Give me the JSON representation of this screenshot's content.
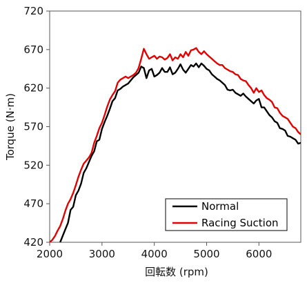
{
  "chart_data": {
    "type": "line",
    "title": "",
    "xlabel": "回転数 (rpm)",
    "ylabel": "Torque (N·m)",
    "xlim": [
      2000,
      6800
    ],
    "ylim": [
      420,
      720
    ],
    "x_ticks": [
      2000,
      3000,
      4000,
      5000,
      6000
    ],
    "x_tick_labels": [
      "2000",
      "3000",
      "4000",
      "5000",
      "6000"
    ],
    "y_ticks": [
      420,
      470,
      520,
      570,
      620,
      670,
      720
    ],
    "y_tick_labels": [
      "420",
      "470",
      "520",
      "570",
      "620",
      "670",
      "720"
    ],
    "grid": false,
    "legend_position": "bottom-right",
    "colors": {
      "normal": "#000000",
      "racing": "#e00000"
    },
    "series": [
      {
        "name": "Normal",
        "color": "#000000",
        "x": [
          2200,
          2300,
          2350,
          2400,
          2450,
          2500,
          2550,
          2600,
          2650,
          2700,
          2750,
          2800,
          2850,
          2900,
          2950,
          3000,
          3050,
          3100,
          3150,
          3200,
          3250,
          3300,
          3350,
          3400,
          3450,
          3500,
          3550,
          3600,
          3650,
          3700,
          3750,
          3800,
          3850,
          3900,
          3950,
          4000,
          4050,
          4100,
          4150,
          4200,
          4250,
          4300,
          4350,
          4400,
          4450,
          4500,
          4550,
          4600,
          4650,
          4700,
          4750,
          4800,
          4850,
          4900,
          4950,
          5000,
          5050,
          5100,
          5150,
          5200,
          5250,
          5300,
          5350,
          5400,
          5450,
          5500,
          5550,
          5600,
          5650,
          5700,
          5750,
          5800,
          5850,
          5900,
          5950,
          6000,
          6050,
          6100,
          6150,
          6200,
          6250,
          6300,
          6350,
          6400,
          6450,
          6500,
          6550,
          6600,
          6650,
          6700,
          6750,
          6800
        ],
        "values": [
          420,
          437,
          445,
          462,
          466,
          481,
          487,
          496,
          510,
          516,
          524,
          532,
          538,
          551,
          553,
          567,
          576,
          584,
          593,
          603,
          607,
          617,
          619,
          622,
          624,
          626,
          630,
          634,
          637,
          640,
          648,
          646,
          633,
          643,
          645,
          635,
          637,
          640,
          646,
          641,
          641,
          647,
          638,
          640,
          645,
          651,
          644,
          640,
          645,
          650,
          648,
          652,
          647,
          652,
          649,
          645,
          643,
          638,
          635,
          632,
          630,
          627,
          624,
          618,
          617,
          618,
          614,
          612,
          610,
          613,
          609,
          606,
          603,
          600,
          604,
          606,
          595,
          595,
          590,
          585,
          582,
          577,
          575,
          568,
          567,
          565,
          558,
          557,
          555,
          553,
          548,
          549
        ]
      },
      {
        "name": "Racing Suction",
        "color": "#e00000",
        "x": [
          2000,
          2050,
          2100,
          2150,
          2200,
          2250,
          2300,
          2350,
          2400,
          2450,
          2500,
          2550,
          2600,
          2650,
          2700,
          2750,
          2800,
          2850,
          2900,
          2950,
          3000,
          3050,
          3100,
          3150,
          3200,
          3250,
          3300,
          3350,
          3400,
          3450,
          3500,
          3550,
          3600,
          3650,
          3700,
          3750,
          3800,
          3850,
          3900,
          3950,
          4000,
          4050,
          4100,
          4150,
          4200,
          4250,
          4300,
          4350,
          4400,
          4450,
          4500,
          4550,
          4600,
          4650,
          4700,
          4750,
          4800,
          4850,
          4900,
          4950,
          5000,
          5050,
          5100,
          5150,
          5200,
          5250,
          5300,
          5350,
          5400,
          5450,
          5500,
          5550,
          5600,
          5650,
          5700,
          5750,
          5800,
          5850,
          5900,
          5950,
          6000,
          6050,
          6100,
          6150,
          6200,
          6250,
          6300,
          6350,
          6400,
          6450,
          6500,
          6550,
          6600,
          6650,
          6700,
          6750,
          6800
        ],
        "values": [
          420,
          423,
          428,
          435,
          441,
          450,
          461,
          470,
          476,
          484,
          494,
          505,
          514,
          522,
          526,
          530,
          536,
          549,
          558,
          568,
          575,
          585,
          596,
          605,
          611,
          616,
          627,
          631,
          633,
          635,
          633,
          635,
          637,
          640,
          646,
          658,
          671,
          664,
          658,
          660,
          662,
          658,
          661,
          660,
          657,
          659,
          664,
          656,
          660,
          658,
          664,
          660,
          667,
          662,
          669,
          670,
          672,
          667,
          664,
          668,
          664,
          661,
          658,
          655,
          652,
          650,
          650,
          646,
          644,
          642,
          641,
          638,
          637,
          632,
          630,
          629,
          624,
          620,
          614,
          620,
          615,
          617,
          611,
          607,
          605,
          602,
          595,
          594,
          588,
          584,
          582,
          580,
          575,
          570,
          568,
          563,
          560
        ]
      }
    ]
  }
}
